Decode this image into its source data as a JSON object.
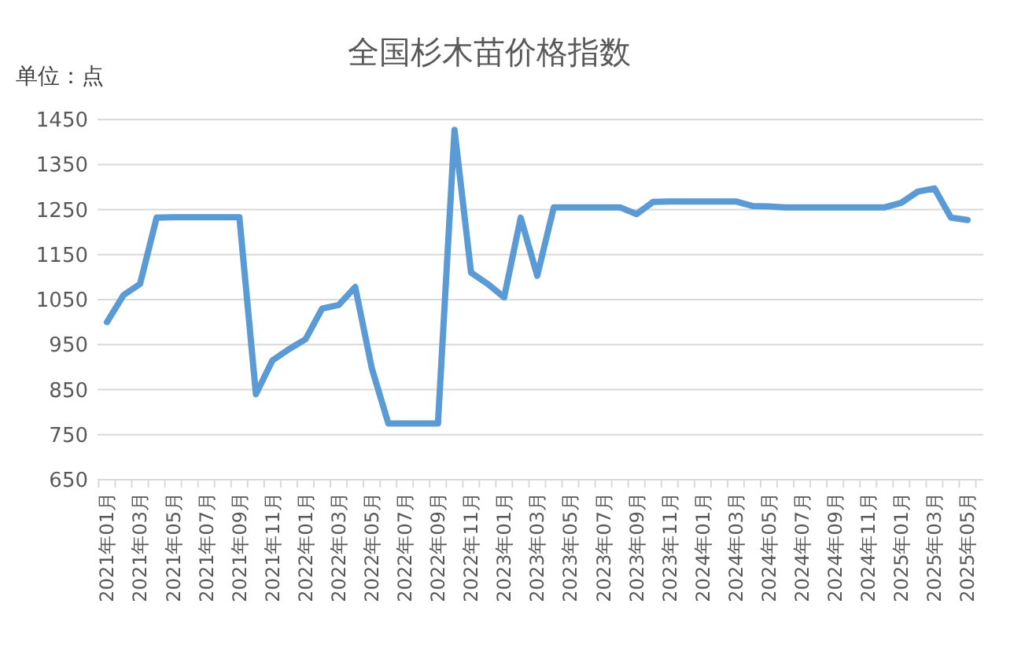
{
  "chart_data": {
    "type": "line",
    "title": "全国杉木苗价格指数",
    "ylabel": "单位：点",
    "categories": [
      "2021年01月",
      null,
      "2021年03月",
      null,
      "2021年05月",
      null,
      "2021年07月",
      null,
      "2021年09月",
      null,
      "2021年11月",
      null,
      "2022年01月",
      null,
      "2022年03月",
      null,
      "2022年05月",
      null,
      "2022年07月",
      null,
      "2022年09月",
      null,
      "2022年11月",
      null,
      "2023年01月",
      null,
      "2023年03月",
      null,
      "2023年05月",
      null,
      "2023年07月",
      null,
      "2023年09月",
      null,
      "2023年11月",
      null,
      "2024年01月",
      null,
      "2024年03月",
      null,
      "2024年05月",
      null,
      "2024年07月",
      null,
      "2024年09月",
      null,
      "2024年11月",
      null,
      "2025年01月",
      null,
      "2025年03月",
      null,
      "2025年05月"
    ],
    "series": [
      {
        "color": "#5b9bd5",
        "values": [
          1000,
          1060,
          1085,
          1232,
          1233,
          1233,
          1233,
          1233,
          1233,
          840,
          915,
          940,
          962,
          1030,
          1038,
          1078,
          898,
          775,
          775,
          775,
          775,
          1427,
          1110,
          1085,
          1055,
          1232,
          1103,
          1255,
          1255,
          1255,
          1255,
          1255,
          1240,
          1267,
          1268,
          1268,
          1268,
          1268,
          1268,
          1258,
          1257,
          1255,
          1255,
          1255,
          1255,
          1255,
          1255,
          1255,
          1265,
          1290,
          1297,
          1232,
          1227
        ]
      }
    ],
    "ylim": [
      650,
      1450
    ],
    "yticks": [
      650,
      750,
      850,
      950,
      1050,
      1150,
      1250,
      1350,
      1450
    ],
    "grid": "y",
    "marker": "none",
    "line_style": "solid"
  }
}
